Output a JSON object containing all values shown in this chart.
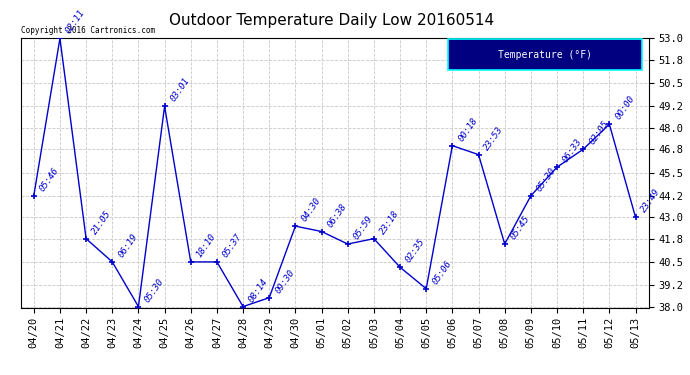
{
  "title": "Outdoor Temperature Daily Low 20160514",
  "copyright_text": "Copyright 2016 Cartronics.com",
  "legend_label": "Temperature (°F)",
  "x_labels": [
    "04/20",
    "04/21",
    "04/22",
    "04/23",
    "04/24",
    "04/25",
    "04/26",
    "04/27",
    "04/28",
    "04/29",
    "04/30",
    "05/01",
    "05/02",
    "05/03",
    "05/04",
    "05/05",
    "05/06",
    "05/07",
    "05/08",
    "05/09",
    "05/10",
    "05/11",
    "05/12",
    "05/13"
  ],
  "y_values": [
    44.2,
    53.0,
    41.8,
    40.5,
    38.0,
    49.2,
    40.5,
    40.5,
    38.0,
    38.5,
    42.5,
    42.2,
    41.5,
    41.8,
    40.2,
    39.0,
    47.0,
    46.5,
    41.5,
    44.2,
    45.8,
    46.8,
    48.2,
    43.0
  ],
  "time_labels": [
    "05:46",
    "02:11",
    "21:05",
    "06:19",
    "05:30",
    "03:01",
    "18:10",
    "05:37",
    "08:14",
    "09:30",
    "04:30",
    "06:38",
    "05:59",
    "23:18",
    "02:35",
    "05:06",
    "00:18",
    "23:53",
    "05:45",
    "05:30",
    "06:33",
    "02:05",
    "00:00",
    "23:49"
  ],
  "ylim_min": 38.0,
  "ylim_max": 53.0,
  "ytick_values": [
    38.0,
    39.2,
    40.5,
    41.8,
    43.0,
    44.2,
    45.5,
    46.8,
    48.0,
    49.2,
    50.5,
    51.8,
    53.0
  ],
  "line_color": "#0000cd",
  "marker_color": "#0000cd",
  "background_color": "#ffffff",
  "plot_bg_color": "#ffffff",
  "grid_color": "#c8c8c8",
  "title_fontsize": 11,
  "tick_fontsize": 7.5,
  "annotation_fontsize": 6.5,
  "legend_bg": "#000080",
  "legend_fg": "#ffffff",
  "legend_border": "#00ffff"
}
